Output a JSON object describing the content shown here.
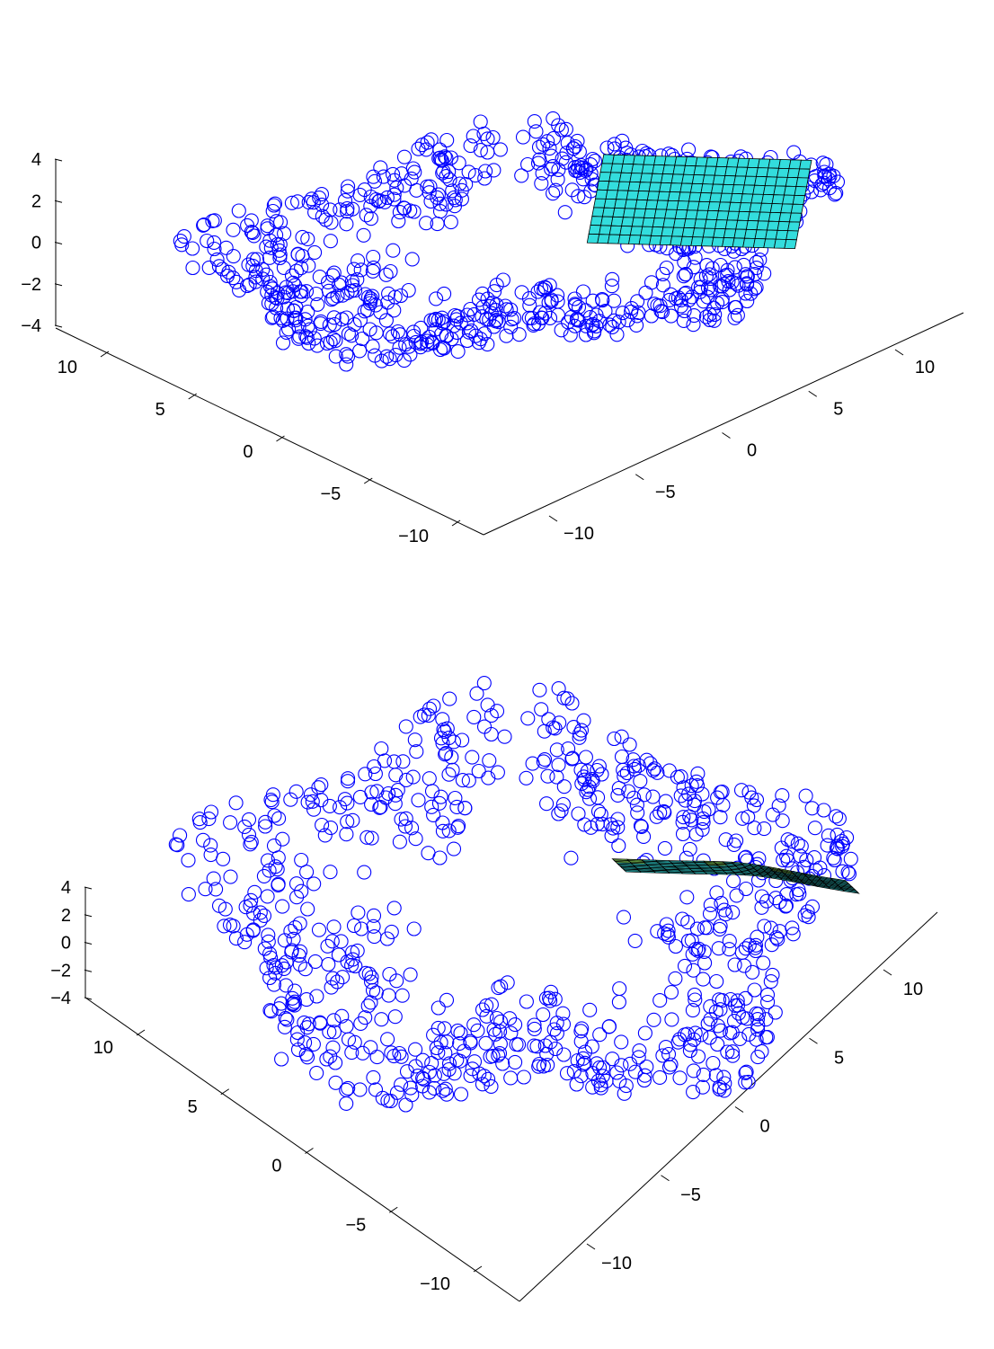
{
  "chart_data": [
    {
      "type": "scatter3d",
      "title": "",
      "description": "",
      "z_axis": {
        "range": [
          -4,
          4
        ],
        "ticks": [
          4,
          2,
          0,
          -2,
          -4
        ]
      },
      "left_axis": {
        "range": [
          -12,
          12
        ],
        "ticks": [
          10,
          5,
          0,
          -5,
          -10
        ]
      },
      "right_axis": {
        "range": [
          -12,
          12
        ],
        "ticks": [
          -10,
          -5,
          0,
          5,
          10
        ]
      },
      "point_cloud": {
        "shape": "ring",
        "inner_radius": 5,
        "outer_radius": 13,
        "lobes": 5,
        "count": 820,
        "marker": "circle",
        "color": "#0000ff"
      },
      "surface_patch": {
        "type": "flat",
        "color": "#33dddd",
        "u_range": [
          -1,
          1
        ],
        "v_range": [
          -1,
          1
        ],
        "grid": [
          10,
          20
        ]
      }
    },
    {
      "type": "scatter3d",
      "title": "",
      "description": "",
      "z_axis": {
        "range": [
          -4,
          4
        ],
        "ticks": [
          4,
          2,
          0,
          -2,
          -4
        ]
      },
      "left_axis": {
        "range": [
          -12,
          12
        ],
        "ticks": [
          10,
          5,
          0,
          -5,
          -10
        ]
      },
      "right_axis": {
        "range": [
          -12,
          12
        ],
        "ticks": [
          -10,
          -5,
          0,
          5,
          10
        ]
      },
      "point_cloud": {
        "shape": "ring",
        "inner_radius": 5,
        "outer_radius": 13,
        "lobes": 5,
        "count": 820,
        "marker": "circle",
        "color": "#0000ff"
      },
      "surface_patch": {
        "type": "curved",
        "color": "#33dddd",
        "highlight": "#99ee66",
        "u_range": [
          -1,
          1
        ],
        "v_range": [
          -1,
          1
        ],
        "grid": [
          10,
          20
        ]
      }
    }
  ]
}
